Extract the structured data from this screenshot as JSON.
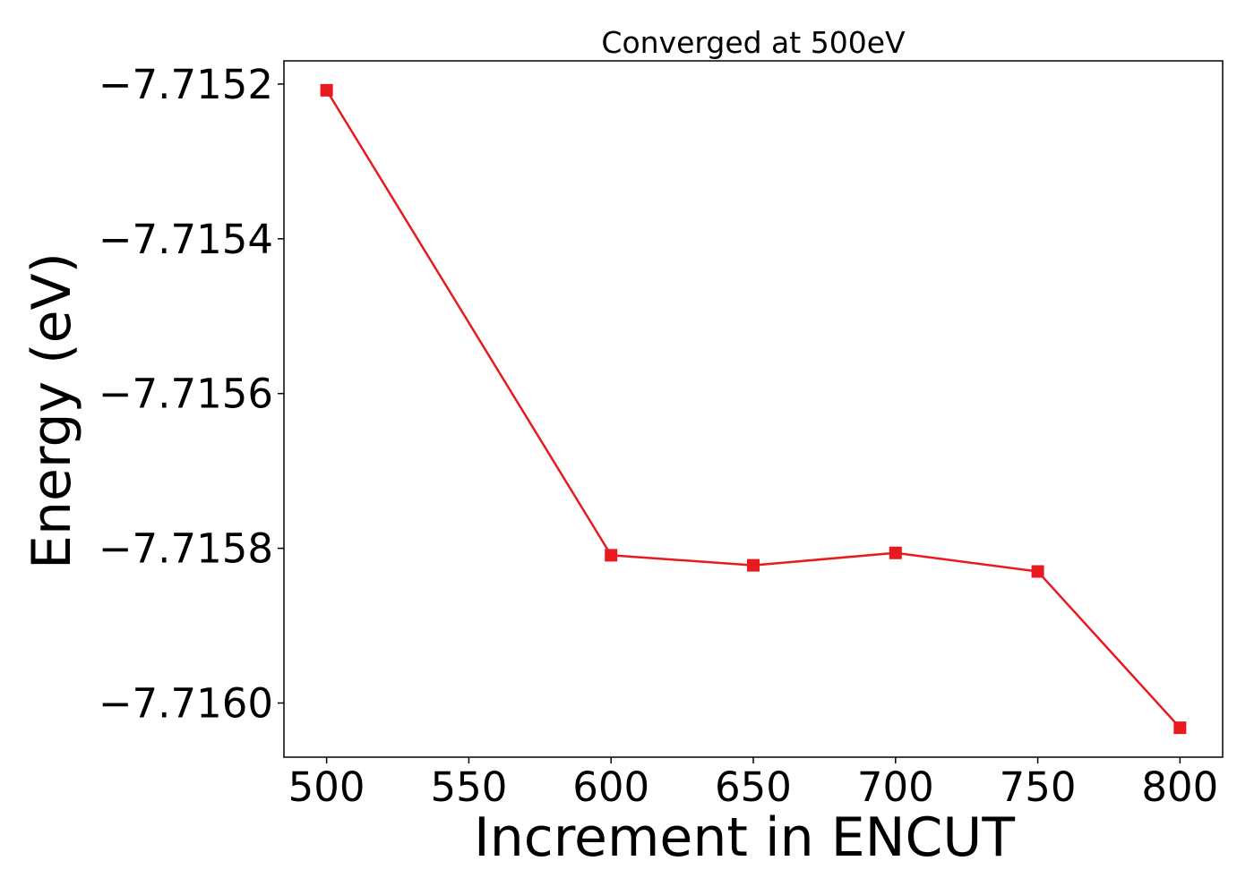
{
  "chart_data": {
    "type": "line",
    "title": "Converged at 500eV",
    "xlabel": "Increment in ENCUT",
    "ylabel": "Energy (eV)",
    "x": [
      500,
      600,
      650,
      700,
      750,
      800
    ],
    "series": [
      {
        "values": [
          -7.715208,
          -7.715809,
          -7.715822,
          -7.715806,
          -7.71583,
          -7.716032
        ],
        "color": "#e8191f",
        "marker": "square"
      }
    ],
    "xticks": [
      500,
      550,
      600,
      650,
      700,
      750,
      800
    ],
    "xtick_labels": [
      "500",
      "550",
      "600",
      "650",
      "700",
      "750",
      "800"
    ],
    "yticks": [
      -7.7152,
      -7.7154,
      -7.7156,
      -7.7158,
      -7.716
    ],
    "ytick_labels": [
      "−7.7152",
      "−7.7154",
      "−7.7156",
      "−7.7158",
      "−7.7160"
    ],
    "xlim": [
      485,
      815
    ],
    "ylim": [
      -7.71607,
      -7.71517
    ],
    "grid": false,
    "legend": "none"
  }
}
